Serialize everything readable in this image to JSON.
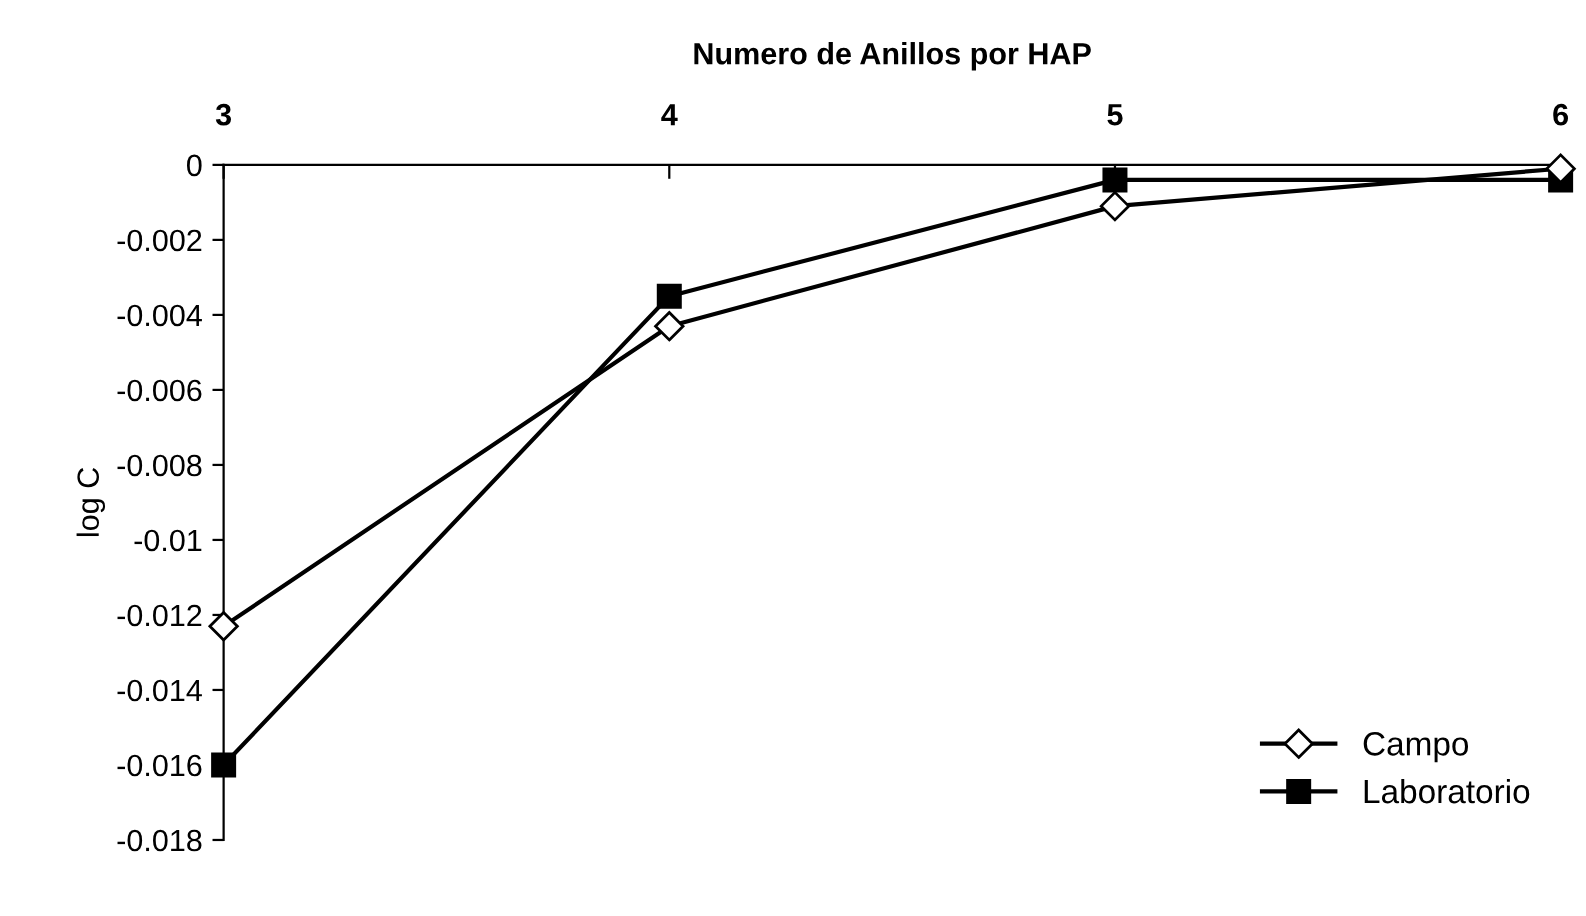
{
  "chart_data": {
    "type": "line",
    "xlabel": "Numero de Anillos por HAP",
    "ylabel": "log C",
    "x": [
      3,
      4,
      5,
      6
    ],
    "series": [
      {
        "name": "Campo",
        "color": "#000000",
        "marker": "diamond",
        "values": [
          -0.0123,
          -0.0043,
          -0.0011,
          -0.0001
        ]
      },
      {
        "name": "Laboratorio",
        "color": "#000000",
        "marker": "square",
        "values": [
          -0.016,
          -0.0035,
          -0.0004,
          -0.0004
        ]
      }
    ],
    "xlim": [
      3,
      6
    ],
    "xticks": [
      3,
      4,
      5,
      6
    ],
    "ylim": [
      -0.018,
      0
    ],
    "yticks": [
      0,
      -0.002,
      -0.004,
      -0.006,
      -0.008,
      -0.01,
      -0.012,
      -0.014,
      -0.016,
      -0.018
    ],
    "grid": false,
    "legend": "bottom right",
    "line_style": "solid"
  }
}
